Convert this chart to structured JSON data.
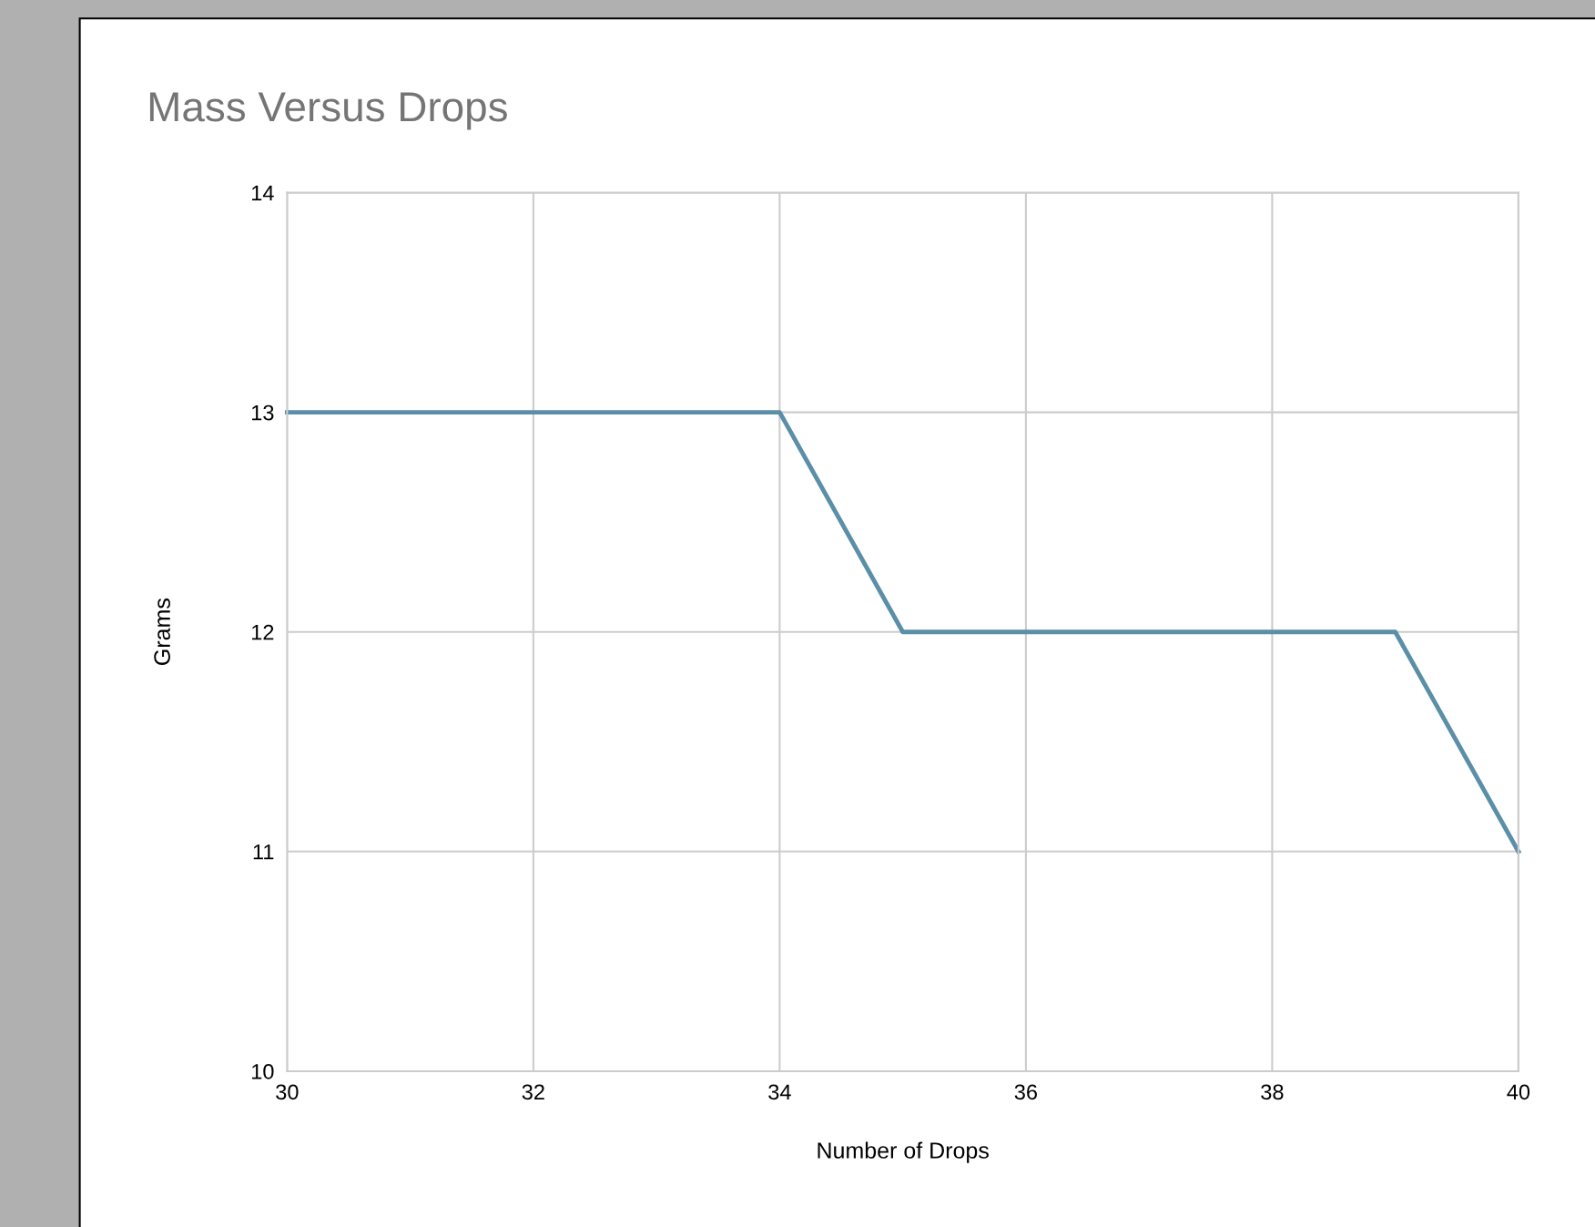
{
  "chart_data": {
    "type": "line",
    "title": "Mass Versus Drops",
    "xlabel": "Number of Drops",
    "ylabel": "Grams",
    "x": [
      30,
      31,
      32,
      33,
      34,
      35,
      36,
      37,
      38,
      39,
      40
    ],
    "series": [
      {
        "color": "#5b8fa8",
        "values": [
          13,
          13,
          13,
          13,
          13,
          12,
          12,
          12,
          12,
          12,
          11
        ]
      }
    ],
    "xlim": [
      30,
      40
    ],
    "xticks": [
      30,
      32,
      34,
      36,
      38,
      40
    ],
    "ylim": [
      10,
      14
    ],
    "yticks": [
      10,
      11,
      12,
      13,
      14
    ],
    "grid": true,
    "legend": false,
    "marker": "none",
    "line_style": "solid"
  }
}
